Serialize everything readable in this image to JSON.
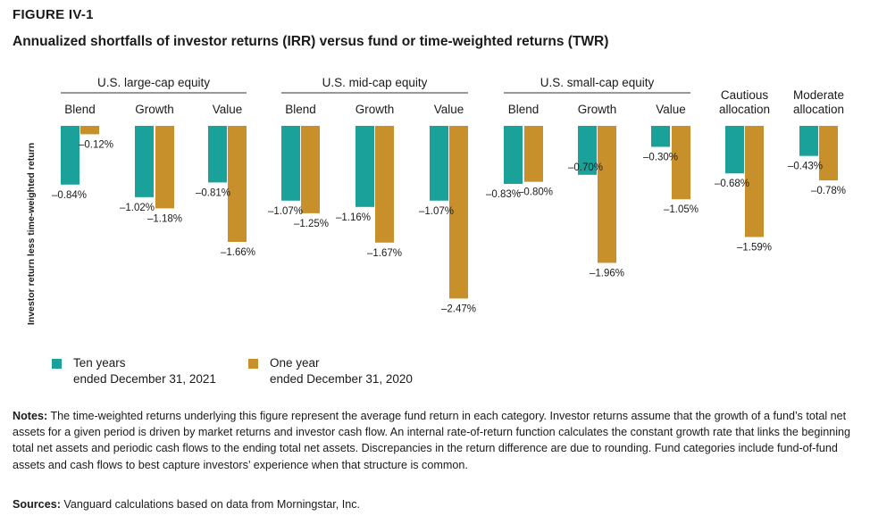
{
  "figure": {
    "label": "FIGURE IV-1",
    "title": "Annualized shortfalls of investor returns (IRR) versus fund or time-weighted returns (TWR)"
  },
  "chart_data": {
    "type": "bar",
    "ylabel": "Investor return less time-weighted return",
    "ylim": [
      -2.6,
      0
    ],
    "colors": {
      "ten_year": "#1aa19a",
      "one_year": "#c8902a"
    },
    "groups": [
      {
        "name": "U.S. large-cap equity",
        "categories": [
          "Blend",
          "Growth",
          "Value"
        ]
      },
      {
        "name": "U.S. mid-cap equity",
        "categories": [
          "Blend",
          "Growth",
          "Value"
        ]
      },
      {
        "name": "U.S. small-cap equity",
        "categories": [
          "Blend",
          "Growth",
          "Value"
        ]
      },
      {
        "name": "",
        "categories": [
          "Cautious allocation"
        ]
      },
      {
        "name": "",
        "categories": [
          "Moderate allocation"
        ]
      }
    ],
    "categories": [
      "Blend",
      "Growth",
      "Value",
      "Blend",
      "Growth",
      "Value",
      "Blend",
      "Growth",
      "Value",
      "Cautious allocation",
      "Moderate allocation"
    ],
    "series": [
      {
        "key": "ten_year",
        "name": "Ten years ended December 31, 2021",
        "values": [
          -0.84,
          -1.02,
          -0.81,
          -1.07,
          -1.16,
          -1.07,
          -0.83,
          -0.7,
          -0.3,
          -0.68,
          -0.43
        ],
        "labels": [
          "–0.84%",
          "–1.02%",
          "–0.81%",
          "–1.07%",
          "–1.16%",
          "–1.07%",
          "–0.83%",
          "–0.70%",
          "–0.30%",
          "–0.68%",
          "–0.43%"
        ]
      },
      {
        "key": "one_year",
        "name": "One year ended December 31, 2020",
        "values": [
          -0.12,
          -1.18,
          -1.66,
          -1.25,
          -1.67,
          -2.47,
          -0.8,
          -1.96,
          -1.05,
          -1.59,
          -0.78
        ],
        "labels": [
          "–0.12%",
          "–1.18%",
          "–1.66%",
          "–1.25%",
          "–1.67%",
          "–2.47%",
          "–0.80%",
          "–1.96%",
          "–1.05%",
          "–1.59%",
          "–0.78%"
        ]
      }
    ],
    "legend": {
      "position": "bottom-left",
      "items": [
        {
          "key": "ten_year",
          "line1": "Ten years",
          "line2": "ended December 31, 2021"
        },
        {
          "key": "one_year",
          "line1": "One year",
          "line2": "ended December 31, 2020"
        }
      ]
    }
  },
  "notes": {
    "lead": "Notes:",
    "text": " The time-weighted returns underlying this figure represent the average fund return in each category. Investor returns assume that the growth of a fund’s total net assets for a given period is driven by market returns and investor cash flow. An internal rate-of-return function calculates the constant growth rate that links the beginning total net assets and periodic cash flows to the ending total net assets. Discrepancies in the return difference are due to rounding. Fund categories include fund-of-fund assets and cash flows to best capture investors’ experience when that structure is common."
  },
  "sources": {
    "lead": "Sources:",
    "text": " Vanguard calculations based on data from Morningstar, Inc."
  }
}
